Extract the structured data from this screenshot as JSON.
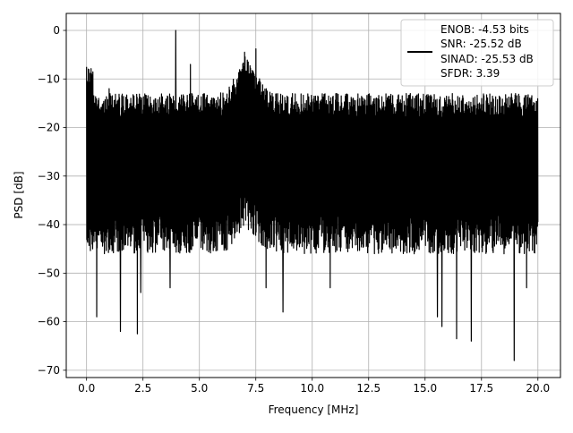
{
  "chart_data": {
    "type": "line",
    "title": "",
    "xlabel": "Frequency [MHz]",
    "ylabel": "PSD [dB]",
    "xlim": [
      -0.9,
      21.0
    ],
    "ylim": [
      -71.5,
      3.5
    ],
    "xticks": [
      0.0,
      2.5,
      5.0,
      7.5,
      10.0,
      12.5,
      15.0,
      17.5,
      20.0
    ],
    "xtick_labels": [
      "0.0",
      "2.5",
      "5.0",
      "7.5",
      "10.0",
      "12.5",
      "15.0",
      "17.5",
      "20.0"
    ],
    "yticks": [
      0,
      -10,
      -20,
      -30,
      -40,
      -50,
      -60,
      -70
    ],
    "ytick_labels": [
      "0",
      "−10",
      "−20",
      "−30",
      "−40",
      "−50",
      "−60",
      "−70"
    ],
    "grid": true,
    "legend_position": "top-right",
    "legend_lines": [
      "ENOB: -4.53 bits",
      "SNR: -25.52 dB",
      "SINAD: -25.53 dB",
      "SFDR: 3.39"
    ],
    "series": [
      {
        "color": "#000000",
        "x_range": [
          0.0,
          20.0
        ],
        "num_points": 2000,
        "envelope": {
          "upper_typical": -13,
          "lower_typical": -42,
          "noise_floor_mean": -27
        },
        "peaks": [
          {
            "x": 0.0,
            "y": -7.5
          },
          {
            "x": 3.95,
            "y": 0.0
          },
          {
            "x": 4.6,
            "y": -7.0
          },
          {
            "x": 7.0,
            "y": -4.5
          },
          {
            "x": 7.5,
            "y": -3.8
          },
          {
            "x": 1.0,
            "y": -12.0
          }
        ],
        "dips": [
          {
            "x": 0.45,
            "y": -59.0
          },
          {
            "x": 1.5,
            "y": -62.0
          },
          {
            "x": 2.25,
            "y": -62.5
          },
          {
            "x": 2.4,
            "y": -54.0
          },
          {
            "x": 3.7,
            "y": -53.0
          },
          {
            "x": 7.95,
            "y": -53.0
          },
          {
            "x": 8.7,
            "y": -58.0
          },
          {
            "x": 10.8,
            "y": -53.0
          },
          {
            "x": 15.55,
            "y": -59.0
          },
          {
            "x": 15.75,
            "y": -61.0
          },
          {
            "x": 16.4,
            "y": -63.5
          },
          {
            "x": 17.05,
            "y": -64.0
          },
          {
            "x": 18.95,
            "y": -68.0
          },
          {
            "x": 19.5,
            "y": -53.0
          }
        ]
      }
    ]
  }
}
